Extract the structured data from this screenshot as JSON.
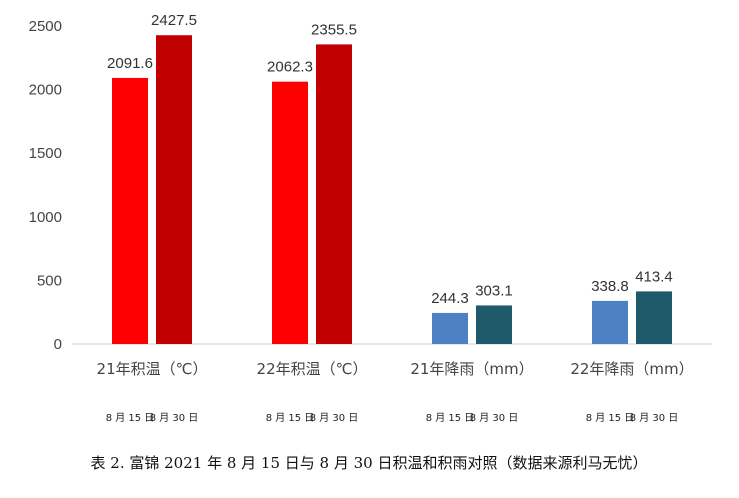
{
  "chart_data": {
    "type": "bar",
    "categories": [
      "21年积温（℃）",
      "22年积温（℃）",
      "21年降雨（mm）",
      "22年降雨（mm）"
    ],
    "series_labels": [
      "8 月 15 日",
      "8 月 30 日"
    ],
    "values": [
      [
        2091.6,
        2427.5
      ],
      [
        2062.3,
        2355.5
      ],
      [
        244.3,
        303.1
      ],
      [
        338.8,
        413.4
      ]
    ],
    "bar_colors": [
      [
        "#ff0000",
        "#c00000"
      ],
      [
        "#ff0000",
        "#c00000"
      ],
      [
        "#4e81c3",
        "#1f5a6a"
      ],
      [
        "#4e81c3",
        "#1f5a6a"
      ]
    ],
    "y_ticks": [
      0,
      500,
      1000,
      1500,
      2000,
      2500
    ],
    "ylim": [
      0,
      2500
    ],
    "grid": false,
    "caption": "表 2. 富锦 2021 年 8 月 15 日与 8 月 30 日积温和积雨对照（数据来源利马无忧）"
  }
}
